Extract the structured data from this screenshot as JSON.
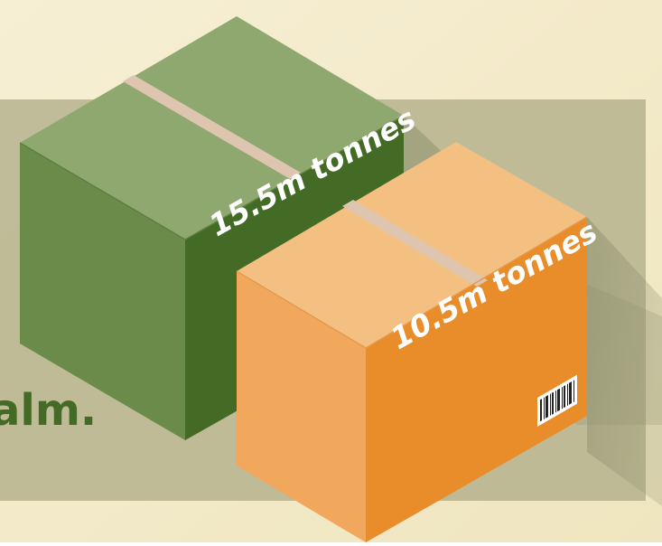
{
  "headline_fragment": "alm.",
  "boxes": [
    {
      "label": "15.5m tonnes",
      "value": 15.5,
      "unit": "m tonnes",
      "color": "#436b25"
    },
    {
      "label": "10.5m tonnes",
      "value": 10.5,
      "unit": "m tonnes",
      "color": "#e98c2a"
    }
  ],
  "colors": {
    "background": "#f2e9c6",
    "panel": "#bfba97",
    "green_top": "#8ea870",
    "green_left": "#6b8b4b",
    "green_right": "#436b25",
    "orange_top": "#f3c081",
    "orange_left": "#f1a85c",
    "orange_right": "#e98c2a",
    "tape": "#ddc5b0",
    "headline": "#436b25"
  }
}
